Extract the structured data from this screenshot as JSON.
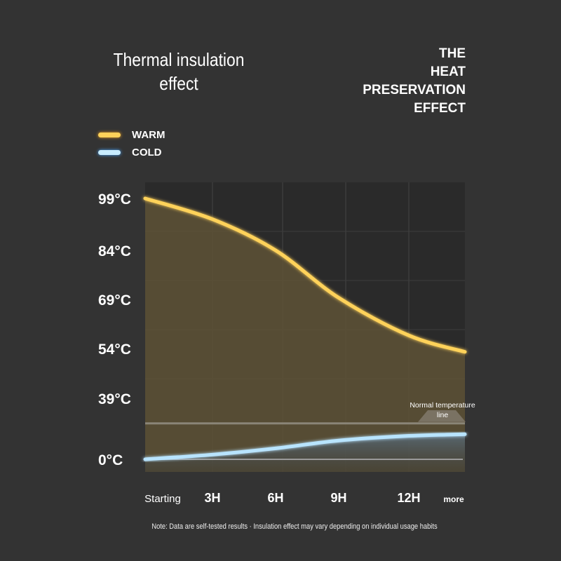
{
  "title": "Thermal insulation effect",
  "title_right": [
    "THE",
    "HEAT",
    "PRESERVATION",
    "EFFECT"
  ],
  "note": "Note: Data are self-tested results · Insulation effect may vary depending on individual usage habits",
  "chart_data": {
    "type": "line",
    "title": "Thermal insulation effect",
    "categories": [
      "Starting",
      "3H",
      "6H",
      "9H",
      "12H",
      "more"
    ],
    "yticks": [
      "99°C",
      "84°C",
      "69°C",
      "54°C",
      "39°C",
      "0°C"
    ],
    "ytick_values": [
      99,
      84,
      69,
      54,
      39,
      0
    ],
    "series": [
      {
        "name": "WARM",
        "color": "#ffd25a",
        "values": [
          99,
          93,
          84,
          69.5,
          58,
          53
        ]
      },
      {
        "name": "COLD",
        "color": "#a8dcff",
        "values": [
          0,
          3,
          7,
          12,
          15,
          16
        ]
      }
    ],
    "reference_line": {
      "label": "Normal temperature line",
      "value": 23
    },
    "legend": "top-left",
    "grid": true
  }
}
